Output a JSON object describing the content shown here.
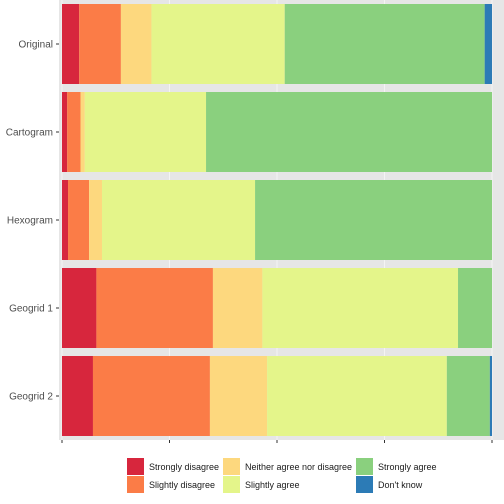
{
  "chart_data": {
    "type": "bar",
    "orientation": "horizontal",
    "stacked": true,
    "normalized": true,
    "categories": [
      "Original",
      "Cartogram",
      "Hexogram",
      "Geogrid 1",
      "Geogrid 2"
    ],
    "series": [
      {
        "name": "Strongly disagree",
        "color": "#d7263d",
        "values": [
          0.04,
          0.012,
          0.014,
          0.08,
          0.072
        ]
      },
      {
        "name": "Slightly disagree",
        "color": "#fb7c47",
        "values": [
          0.097,
          0.031,
          0.049,
          0.271,
          0.272
        ]
      },
      {
        "name": "Neither agree nor disagree",
        "color": "#fdd87e",
        "values": [
          0.071,
          0.01,
          0.03,
          0.115,
          0.133
        ]
      },
      {
        "name": "Slightly agree",
        "color": "#e4f58a",
        "values": [
          0.31,
          0.282,
          0.356,
          0.455,
          0.418
        ]
      },
      {
        "name": "Strongly agree",
        "color": "#8ad07e",
        "values": [
          0.465,
          0.665,
          0.551,
          0.079,
          0.1
        ]
      },
      {
        "name": "Don't know",
        "color": "#2c7bb6",
        "values": [
          0.017,
          0.0,
          0.0,
          0.0,
          0.005
        ]
      }
    ],
    "legend_order": [
      "Strongly disagree",
      "Slightly disagree",
      "Neither agree nor disagree",
      "Slightly agree",
      "Strongly agree",
      "Don't know"
    ],
    "legend_position": "bottom",
    "xlim": [
      0,
      1
    ],
    "x_ticks": [
      0,
      0.25,
      0.5,
      0.75,
      1
    ],
    "x_tick_labels_visible": false,
    "grid": true,
    "title": "",
    "xlabel": "",
    "ylabel": ""
  }
}
